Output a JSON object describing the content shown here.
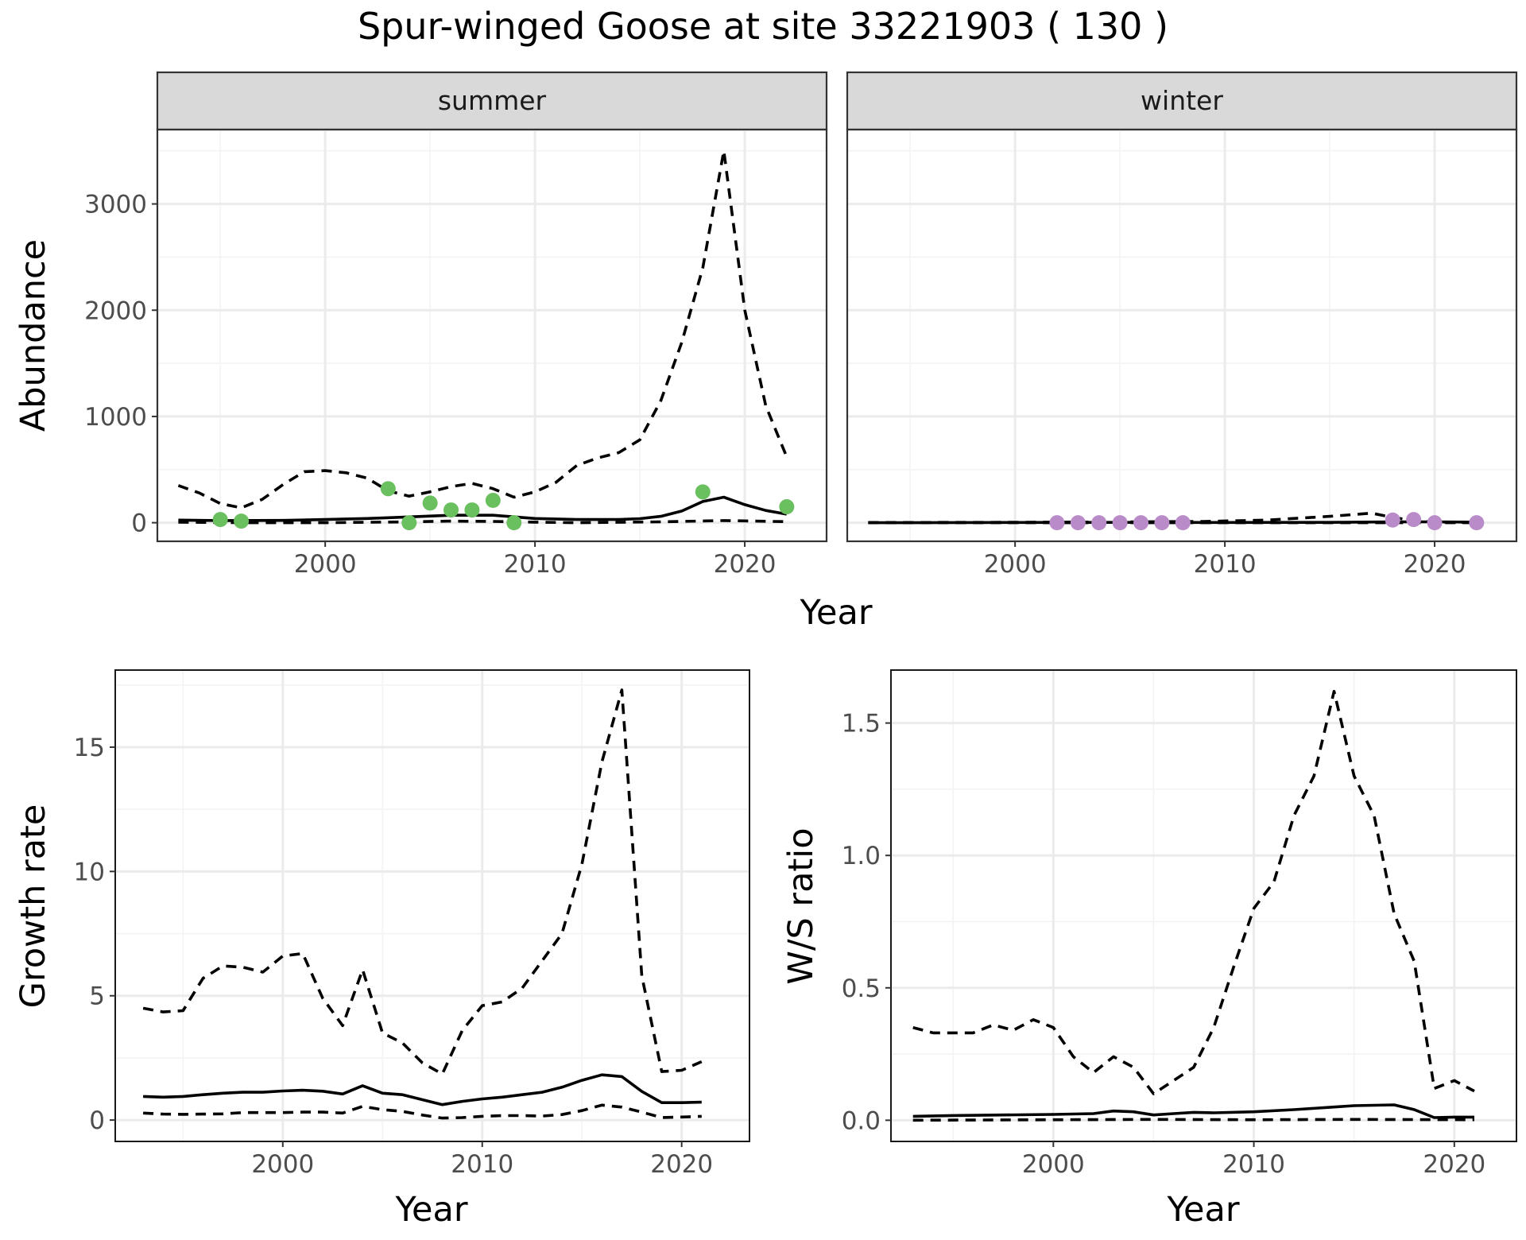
{
  "title": "Spur-winged Goose at site 33221903 ( 130 )",
  "colors": {
    "summer_points": "#6abf5e",
    "winter_points": "#b98cc9",
    "line": "#000000",
    "grid_major": "#ebebeb",
    "grid_minor": "#f3f3f3",
    "strip_fill": "#d9d9d9",
    "strip_border": "#333333",
    "tick_text": "#4d4d4d"
  },
  "chart_data": [
    {
      "id": "abundance",
      "type": "line",
      "facets": [
        "summer",
        "winter"
      ],
      "xlabel": "Year",
      "ylabel": "Abundance",
      "xlim": [
        1992.0,
        2023.9
      ],
      "ylim": [
        -175,
        3700
      ],
      "xticks": [
        2000,
        2010,
        2020
      ],
      "yticks": [
        0,
        1000,
        2000,
        3000
      ],
      "grid": true,
      "panels": [
        {
          "facet": "summer",
          "series": [
            {
              "style": "solid",
              "x": [
                1993,
                1995,
                1998,
                2000,
                2002,
                2004,
                2006,
                2008,
                2010,
                2012,
                2014,
                2015,
                2016,
                2017,
                2018,
                2019,
                2020,
                2021,
                2022
              ],
              "y": [
                25,
                20,
                22,
                30,
                40,
                55,
                70,
                70,
                40,
                30,
                30,
                38,
                60,
                110,
                200,
                240,
                170,
                115,
                80
              ]
            },
            {
              "style": "dashed",
              "x": [
                1993,
                1994,
                1995,
                1996,
                1997,
                1998,
                1999,
                2000,
                2001,
                2002,
                2003,
                2004,
                2005,
                2006,
                2007,
                2008,
                2009,
                2010,
                2011,
                2012,
                2013,
                2014,
                2015,
                2016,
                2017,
                2018,
                2019,
                2020,
                2021,
                2022
              ],
              "y": [
                350,
                280,
                180,
                140,
                220,
                360,
                480,
                490,
                470,
                420,
                300,
                250,
                290,
                340,
                370,
                320,
                240,
                290,
                380,
                540,
                610,
                660,
                780,
                1150,
                1700,
                2400,
                3500,
                2000,
                1100,
                620
              ]
            },
            {
              "style": "dashed",
              "x": [
                1993,
                1996,
                2000,
                2004,
                2006,
                2008,
                2010,
                2012,
                2016,
                2019,
                2022
              ],
              "y": [
                5,
                0,
                0,
                8,
                15,
                12,
                5,
                0,
                8,
                20,
                10
              ]
            }
          ],
          "points": {
            "x": [
              1995,
              1996,
              2003,
              2004,
              2005,
              2006,
              2007,
              2008,
              2009,
              2018,
              2022
            ],
            "y": [
              30,
              15,
              320,
              0,
              185,
              120,
              120,
              210,
              0,
              290,
              150
            ]
          }
        },
        {
          "facet": "winter",
          "series": [
            {
              "style": "solid",
              "x": [
                1993,
                2000,
                2005,
                2010,
                2015,
                2018,
                2020,
                2022
              ],
              "y": [
                0,
                2,
                3,
                2,
                3,
                8,
                8,
                5
              ]
            },
            {
              "style": "dashed",
              "x": [
                1993,
                1998,
                2002,
                2006,
                2009,
                2012,
                2015,
                2017,
                2018,
                2019,
                2020,
                2022
              ],
              "y": [
                2,
                3,
                5,
                8,
                12,
                25,
                60,
                90,
                50,
                20,
                5,
                2
              ]
            },
            {
              "style": "dashed",
              "x": [
                1993,
                2022
              ],
              "y": [
                0,
                0
              ]
            }
          ],
          "points": {
            "x": [
              2002,
              2003,
              2004,
              2005,
              2006,
              2007,
              2008,
              2018,
              2019,
              2020,
              2022
            ],
            "y": [
              0,
              0,
              0,
              0,
              0,
              0,
              0,
              25,
              30,
              0,
              0
            ]
          }
        }
      ]
    },
    {
      "id": "growth",
      "type": "line",
      "xlabel": "Year",
      "ylabel": "Growth rate",
      "xlim": [
        1991.6,
        2023.4
      ],
      "ylim": [
        -0.86,
        18.1
      ],
      "xticks": [
        2000,
        2010,
        2020
      ],
      "yticks": [
        0,
        5,
        10,
        15
      ],
      "grid": true,
      "series": [
        {
          "style": "solid",
          "x": [
            1993,
            1994,
            1995,
            1996,
            1997,
            1998,
            1999,
            2000,
            2001,
            2002,
            2003,
            2004,
            2005,
            2006,
            2007,
            2008,
            2009,
            2010,
            2011,
            2012,
            2013,
            2014,
            2015,
            2016,
            2017,
            2018,
            2019,
            2020,
            2021
          ],
          "y": [
            0.95,
            0.92,
            0.95,
            1.02,
            1.08,
            1.12,
            1.12,
            1.17,
            1.2,
            1.16,
            1.05,
            1.38,
            1.08,
            1.02,
            0.82,
            0.62,
            0.75,
            0.85,
            0.92,
            1.02,
            1.12,
            1.32,
            1.6,
            1.82,
            1.75,
            1.15,
            0.7,
            0.7,
            0.72
          ]
        },
        {
          "style": "dashed",
          "x": [
            1993,
            1994,
            1995,
            1996,
            1997,
            1998,
            1999,
            2000,
            2001,
            2002,
            2003,
            2004,
            2005,
            2006,
            2007,
            2008,
            2009,
            2010,
            2011,
            2012,
            2013,
            2014,
            2015,
            2016,
            2017,
            2018,
            2019,
            2020,
            2021
          ],
          "y": [
            4.5,
            4.35,
            4.4,
            5.7,
            6.2,
            6.15,
            5.95,
            6.6,
            6.7,
            4.9,
            3.8,
            6.05,
            3.5,
            3.1,
            2.3,
            1.85,
            3.6,
            4.6,
            4.75,
            5.3,
            6.4,
            7.5,
            10.3,
            14.4,
            17.3,
            5.8,
            1.95,
            2.0,
            2.35
          ]
        },
        {
          "style": "dashed",
          "x": [
            1993,
            1994,
            1995,
            1996,
            1997,
            1998,
            1999,
            2000,
            2001,
            2002,
            2003,
            2004,
            2005,
            2006,
            2007,
            2008,
            2009,
            2010,
            2011,
            2012,
            2013,
            2014,
            2015,
            2016,
            2017,
            2018,
            2019,
            2020,
            2021
          ],
          "y": [
            0.28,
            0.24,
            0.23,
            0.24,
            0.25,
            0.3,
            0.3,
            0.3,
            0.32,
            0.32,
            0.28,
            0.55,
            0.42,
            0.35,
            0.2,
            0.08,
            0.1,
            0.15,
            0.18,
            0.18,
            0.16,
            0.22,
            0.38,
            0.6,
            0.52,
            0.32,
            0.1,
            0.12,
            0.15
          ]
        }
      ]
    },
    {
      "id": "ratio",
      "type": "line",
      "xlabel": "Year",
      "ylabel": "W/S ratio",
      "xlim": [
        1991.9,
        2023.1
      ],
      "ylim": [
        -0.08,
        1.7
      ],
      "xticks": [
        2000,
        2010,
        2020
      ],
      "yticks": [
        0.0,
        0.5,
        1.0,
        1.5
      ],
      "ytick_labels": [
        "0.0",
        "0.5",
        "1.0",
        "1.5"
      ],
      "grid": true,
      "series": [
        {
          "style": "solid",
          "x": [
            1993,
            1995,
            2000,
            2002,
            2003,
            2004,
            2005,
            2006,
            2007,
            2008,
            2010,
            2012,
            2014,
            2015,
            2017,
            2018,
            2019,
            2020,
            2021
          ],
          "y": [
            0.015,
            0.018,
            0.022,
            0.025,
            0.035,
            0.032,
            0.02,
            0.025,
            0.03,
            0.028,
            0.032,
            0.04,
            0.05,
            0.055,
            0.058,
            0.04,
            0.01,
            0.012,
            0.012
          ]
        },
        {
          "style": "dashed",
          "x": [
            1993,
            1994,
            1995,
            1996,
            1997,
            1998,
            1999,
            2000,
            2001,
            2002,
            2003,
            2004,
            2005,
            2006,
            2007,
            2008,
            2009,
            2010,
            2011,
            2012,
            2013,
            2014,
            2015,
            2016,
            2017,
            2018,
            2019,
            2020,
            2021
          ],
          "y": [
            0.35,
            0.33,
            0.33,
            0.33,
            0.36,
            0.34,
            0.38,
            0.35,
            0.24,
            0.18,
            0.24,
            0.2,
            0.1,
            0.15,
            0.2,
            0.35,
            0.58,
            0.8,
            0.9,
            1.15,
            1.3,
            1.62,
            1.3,
            1.15,
            0.78,
            0.6,
            0.12,
            0.15,
            0.11
          ]
        },
        {
          "style": "dashed",
          "x": [
            1993,
            2000,
            2005,
            2010,
            2015,
            2021
          ],
          "y": [
            0.0,
            0.002,
            0.003,
            0.002,
            0.003,
            0.002
          ]
        }
      ]
    }
  ]
}
